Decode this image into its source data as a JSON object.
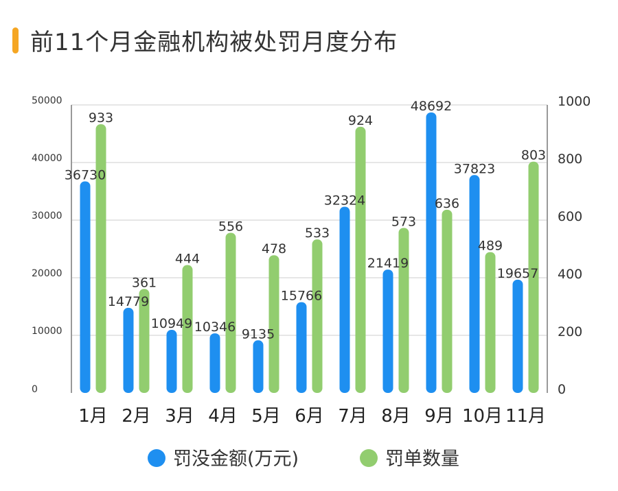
{
  "title": "前11个月金融机构被处罚月度分布",
  "colors": {
    "accent": "#F5A623",
    "blue": "#1E8FF0",
    "green": "#92CD6F",
    "grid": "#DDDDDD",
    "axis": "#999999"
  },
  "chart_data": {
    "type": "bar",
    "title": "前11个月金融机构被处罚月度分布",
    "categories": [
      "1月",
      "2月",
      "3月",
      "4月",
      "5月",
      "6月",
      "7月",
      "8月",
      "9月",
      "10月",
      "11月"
    ],
    "series": [
      {
        "name": "罚没金额(万元)",
        "axis": "left",
        "values": [
          36730,
          14779,
          10949,
          10346,
          9135,
          15766,
          32324,
          21419,
          48692,
          37823,
          19657
        ]
      },
      {
        "name": "罚单数量",
        "axis": "right",
        "values": [
          933,
          361,
          444,
          556,
          478,
          533,
          924,
          573,
          636,
          489,
          803
        ]
      }
    ],
    "left_axis": {
      "min": 0,
      "max": 50000,
      "ticks": [
        "0",
        "10000",
        "20000",
        "30000",
        "40000",
        "50000"
      ]
    },
    "right_axis": {
      "min": 0,
      "max": 1000,
      "ticks": [
        "0",
        "200",
        "400",
        "600",
        "800",
        "1000"
      ]
    },
    "grid": true,
    "legend_position": "bottom"
  }
}
